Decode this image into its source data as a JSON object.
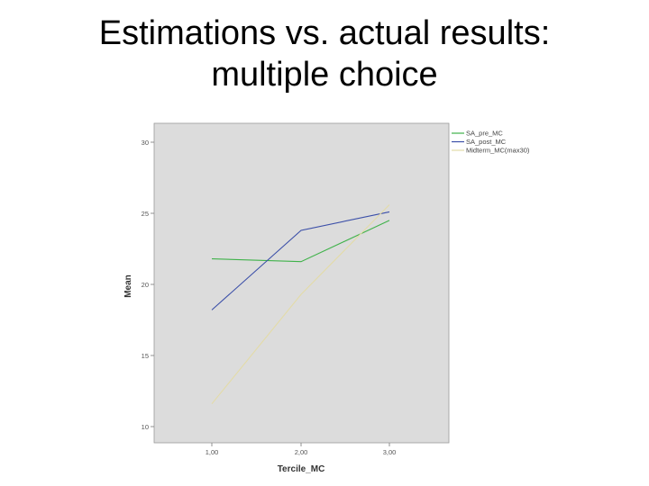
{
  "slide": {
    "title_line1": "Estimations vs. actual results:",
    "title_line2": "multiple choice"
  },
  "chart_data": {
    "type": "line",
    "title": "Estimations vs. actual results: multiple choice",
    "xlabel": "Tercile_MC",
    "ylabel": "Mean",
    "categories": [
      "1,00",
      "2,00",
      "3,00"
    ],
    "x": [
      1,
      2,
      3
    ],
    "y_ticks": [
      "10",
      "15",
      "20",
      "25",
      "30"
    ],
    "ylim": [
      10,
      30
    ],
    "grid": false,
    "legend_position": "top-right outside",
    "plot_background": "#dcdcdc",
    "series": [
      {
        "name": "SA_pre_MC",
        "color": "#3fb24a",
        "values": [
          21.8,
          21.6,
          24.5
        ]
      },
      {
        "name": "SA_post_MC",
        "color": "#3b4fa8",
        "values": [
          18.2,
          23.8,
          25.1
        ]
      },
      {
        "name": "Midterm_MC(max30)",
        "color": "#e3dba8",
        "values": [
          11.6,
          19.3,
          25.6
        ]
      }
    ]
  }
}
